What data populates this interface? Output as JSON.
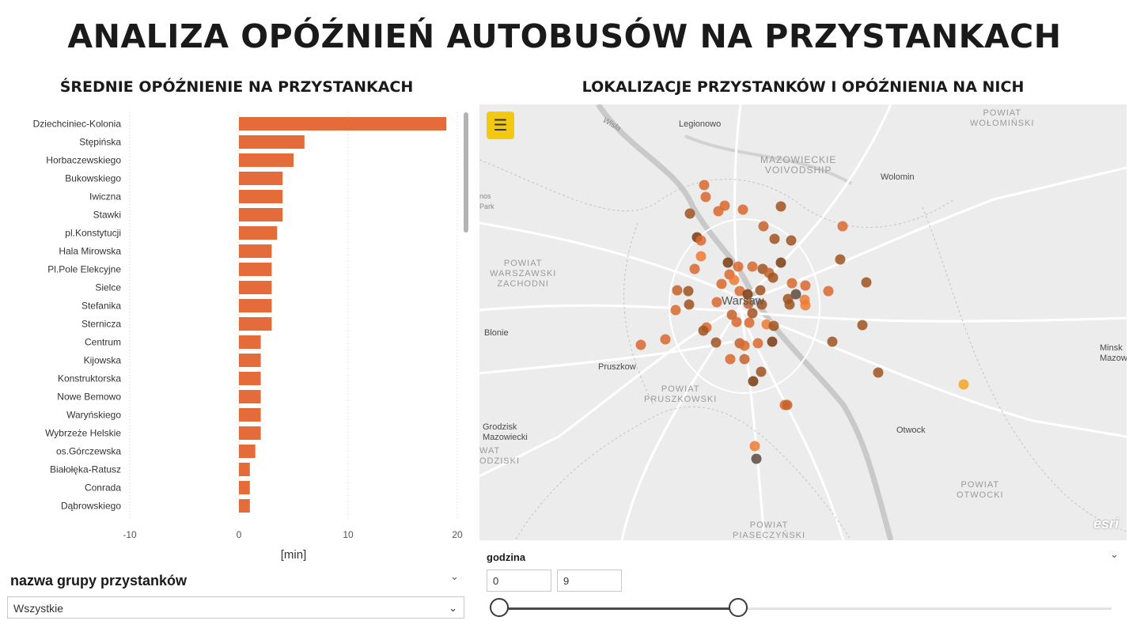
{
  "page": {
    "title": "ANALIZA OPÓŹNIEŃ AUTOBUSÓW NA PRZYSTANKACH"
  },
  "chart": {
    "title": "ŚREDNIE OPÓŹNIENIE NA PRZYSTANKACH"
  },
  "map": {
    "title": "LOKALIZACJE PRZYSTANKÓW I OPÓŹNIENIA NA NICH",
    "menu_icon": "hamburger-menu-icon",
    "places": {
      "legionowo": "Legionowo",
      "wolomin": "Wolomin",
      "warsaw": "Warsaw",
      "blonie": "Blonie",
      "pruszkow": "Pruszkow",
      "otwock": "Otwock",
      "grodzisk": "Grodzisk\nMazowiecki",
      "minsk": "Minsk\nMazowiec",
      "mazowieckie": "MAZOWIECKIE\nVOIVODSHIP",
      "powiat_wolominski": "POWIAT\nWOŁOMIŃSKI",
      "powiat_warszawski": "POWIAT\nWARSZAWSKI\nZACHODNI",
      "powiat_pruszkowski": "POWIAT\nPRUSZKOWSKI",
      "powiat_otwocki": "POWIAT\nOTWOCKI",
      "powiat_piaseczynski": "POWIAT\nPIASECZYŃSKI",
      "wisla": "Wisła",
      "kampinos": "nos\nPark",
      "zodziski": "WAT\nODZISKI"
    },
    "logo": "esri"
  },
  "colors": {
    "bar": "#e46c3a",
    "accent": "#f2c811"
  },
  "chart_data": {
    "type": "bar",
    "orientation": "horizontal",
    "title": "ŚREDNIE OPÓŹNIENIE NA PRZYSTANKACH",
    "xlabel": "[min]",
    "ylabel": "",
    "xlim": [
      -10,
      20
    ],
    "xticks": [
      -10,
      0,
      10,
      20
    ],
    "grid": true,
    "categories": [
      "Dziechciniec-Kolonia",
      "Stępińska",
      "Horbaczewskiego",
      "Bukowskiego",
      "Iwiczna",
      "Stawki",
      "pl.Konstytucji",
      "Hala Mirowska",
      "Pl.Pole Elekcyjne",
      "Sielce",
      "Stefanika",
      "Sternicza",
      "Centrum",
      "Kijowska",
      "Konstruktorska",
      "Nowe Bemowo",
      "Waryńskiego",
      "Wybrzeże Helskie",
      "os.Górczewska",
      "Białołęka-Ratusz",
      "Conrada",
      "Dąbrowskiego"
    ],
    "values": [
      19,
      6,
      5,
      4,
      4,
      4,
      3.5,
      3,
      3,
      3,
      3,
      3,
      2,
      2,
      2,
      2,
      2,
      2,
      1.5,
      1,
      1,
      1
    ]
  },
  "filters": {
    "stop_group": {
      "title": "nazwa grupy przystanków",
      "selected": "Wszystkie"
    },
    "hour": {
      "title": "godzina",
      "min": "0",
      "max": "9",
      "range_fraction": [
        0,
        0.39
      ]
    }
  }
}
